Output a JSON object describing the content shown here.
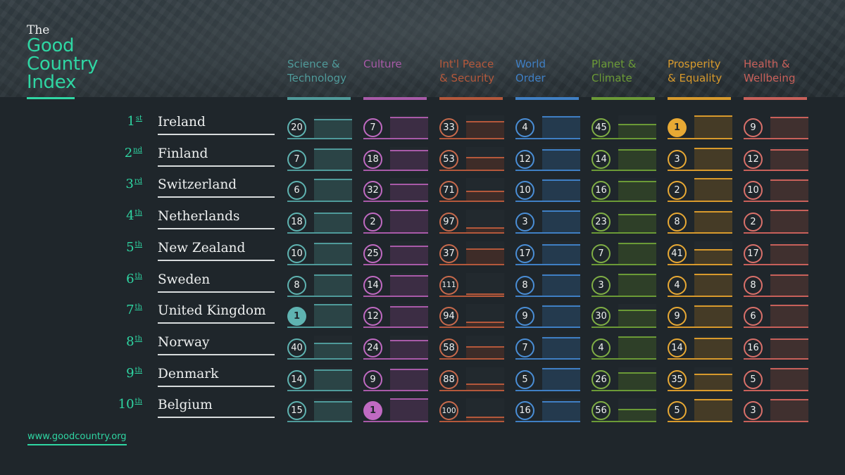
{
  "brand": {
    "the": "The",
    "line1": "Good",
    "line2": "Country",
    "line3": "Index"
  },
  "footer": {
    "url": "www.goodcountry.org"
  },
  "categories": [
    {
      "l1": "Science &",
      "l2": "Technology",
      "color": "#4f9a9a",
      "fillbg": "#2b4446",
      "circle": "#5fb3b1"
    },
    {
      "l1": "Culture",
      "l2": "",
      "color": "#a85aa8",
      "fillbg": "#3c2d44",
      "circle": "#c06ac2"
    },
    {
      "l1": "Int'l Peace",
      "l2": "& Security",
      "color": "#b4583b",
      "fillbg": "#3e2c28",
      "circle": "#c86a4c"
    },
    {
      "l1": "World",
      "l2": "Order",
      "color": "#3f7fc4",
      "fillbg": "#243a4e",
      "circle": "#4a8ed6"
    },
    {
      "l1": "Planet &",
      "l2": "Climate",
      "color": "#6b9a36",
      "fillbg": "#2e3f28",
      "circle": "#7fae45"
    },
    {
      "l1": "Prosperity",
      "l2": "& Equality",
      "color": "#d89a2c",
      "fillbg": "#453b26",
      "circle": "#e8a934"
    },
    {
      "l1": "Health &",
      "l2": "Wellbeing",
      "color": "#c8605a",
      "fillbg": "#40302f",
      "circle": "#d9706a"
    }
  ],
  "rows": [
    {
      "rank": "1",
      "suffix": "st",
      "country": "Ireland",
      "scores": [
        20,
        7,
        33,
        4,
        45,
        1,
        9
      ]
    },
    {
      "rank": "2",
      "suffix": "nd",
      "country": "Finland",
      "scores": [
        7,
        18,
        53,
        12,
        14,
        3,
        12
      ]
    },
    {
      "rank": "3",
      "suffix": "rd",
      "country": "Switzerland",
      "scores": [
        6,
        32,
        71,
        10,
        16,
        2,
        10
      ]
    },
    {
      "rank": "4",
      "suffix": "th",
      "country": "Netherlands",
      "scores": [
        18,
        2,
        97,
        3,
        23,
        8,
        2
      ]
    },
    {
      "rank": "5",
      "suffix": "th",
      "country": "New Zealand",
      "scores": [
        10,
        25,
        37,
        17,
        7,
        41,
        17
      ]
    },
    {
      "rank": "6",
      "suffix": "th",
      "country": "Sweden",
      "scores": [
        8,
        14,
        111,
        8,
        3,
        4,
        8
      ]
    },
    {
      "rank": "7",
      "suffix": "th",
      "country": "United Kingdom",
      "scores": [
        1,
        12,
        94,
        9,
        30,
        9,
        6
      ]
    },
    {
      "rank": "8",
      "suffix": "th",
      "country": "Norway",
      "scores": [
        40,
        24,
        58,
        7,
        4,
        14,
        16
      ]
    },
    {
      "rank": "9",
      "suffix": "th",
      "country": "Denmark",
      "scores": [
        14,
        9,
        88,
        5,
        26,
        35,
        5
      ]
    },
    {
      "rank": "10",
      "suffix": "th",
      "country": "Belgium",
      "scores": [
        15,
        1,
        100,
        16,
        56,
        5,
        3
      ]
    }
  ]
}
